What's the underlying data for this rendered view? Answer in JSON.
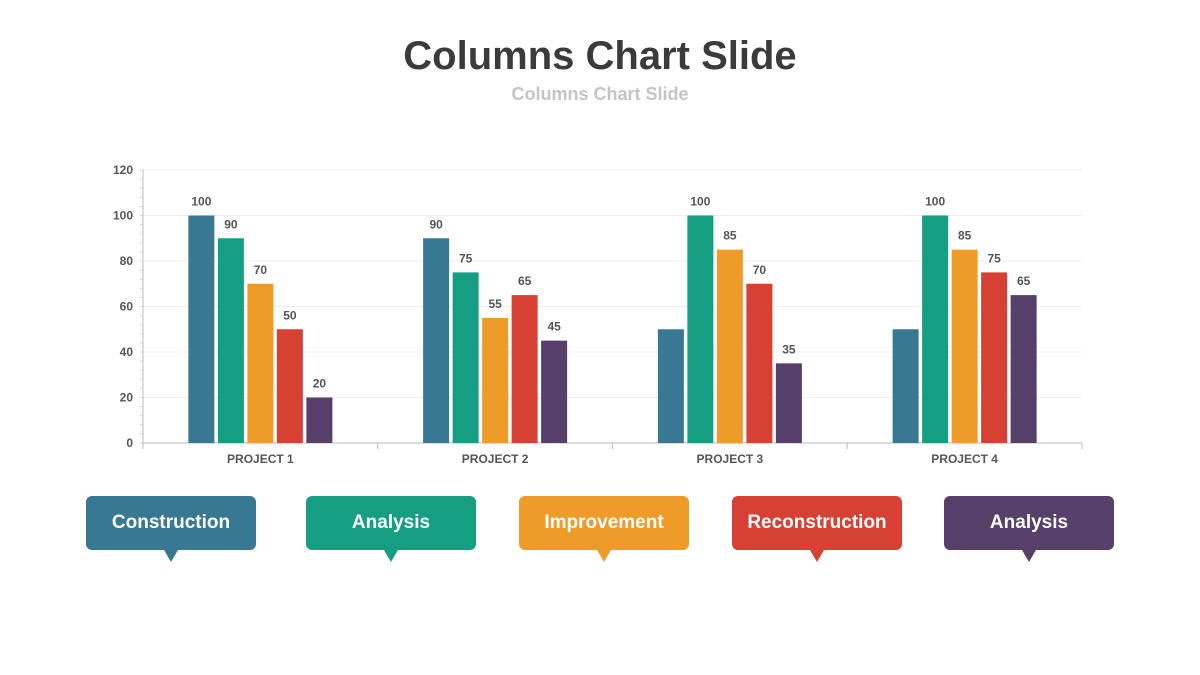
{
  "page": {
    "title": "Columns Chart Slide",
    "subtitle": "Columns Chart Slide"
  },
  "chart_data": {
    "type": "bar",
    "categories": [
      "PROJECT 1",
      "PROJECT 2",
      "PROJECT 3",
      "PROJECT 4"
    ],
    "series": [
      {
        "name": "Construction",
        "color": "#387893",
        "values": [
          100,
          90,
          50,
          50
        ],
        "labels": [
          "100",
          "90",
          "",
          ""
        ]
      },
      {
        "name": "Analysis",
        "color": "#169e82",
        "values": [
          90,
          75,
          100,
          100
        ],
        "labels": [
          "90",
          "75",
          "100",
          "100"
        ]
      },
      {
        "name": "Improvement",
        "color": "#ef9b2a",
        "values": [
          70,
          55,
          85,
          85
        ],
        "labels": [
          "70",
          "55",
          "85",
          "85"
        ]
      },
      {
        "name": "Reconstruction",
        "color": "#d64133",
        "values": [
          50,
          65,
          70,
          75
        ],
        "labels": [
          "50",
          "65",
          "70",
          "75"
        ]
      },
      {
        "name": "Analysis",
        "color": "#563f68",
        "values": [
          20,
          45,
          35,
          65
        ],
        "labels": [
          "20",
          "45",
          "35",
          "65"
        ]
      }
    ],
    "ylim": [
      0,
      120
    ],
    "yticks": [
      0,
      20,
      40,
      60,
      80,
      100,
      120
    ],
    "grid": true,
    "legend_position": "bottom"
  }
}
